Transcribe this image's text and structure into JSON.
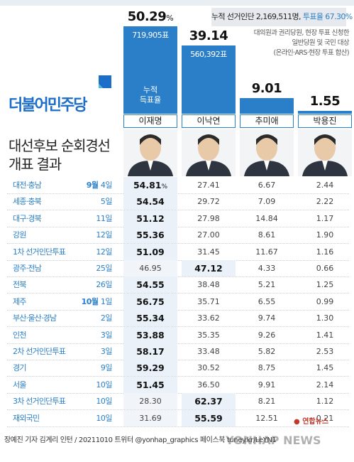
{
  "header": {
    "summary_prefix": "누적 선거인단 2,169,511명, ",
    "summary_turnout": "투표율 67.30%",
    "note_lines": [
      "대의원과 권리당원, 현장 투표 신청한",
      "일반당원 및 국민 대상",
      "(온라인·ARS·현장 투표 합산)"
    ]
  },
  "logo": {
    "party_name": "더불어민주당"
  },
  "title_lines": [
    "대선후보 순회경선",
    "개표 결과"
  ],
  "cumulative_label": [
    "누적",
    "득표율"
  ],
  "chart_data": {
    "type": "bar",
    "categories": [
      "이재명",
      "이낙연",
      "추미애",
      "박용진"
    ],
    "values": [
      50.29,
      39.14,
      9.01,
      1.55
    ],
    "value_labels": [
      "50.29",
      "39.14",
      "9.01",
      "1.55"
    ],
    "unit_first": "%",
    "votes": [
      "719,905표",
      "560,392표",
      "",
      ""
    ],
    "ylim": [
      0,
      55
    ]
  },
  "table": {
    "rows": [
      {
        "region": "대전·충남",
        "month": "9월",
        "day": "4일",
        "values": [
          "54.81",
          "27.41",
          "6.67",
          "2.44"
        ],
        "winner": 0,
        "first_suffix": "%"
      },
      {
        "region": "세종·충북",
        "month": "",
        "day": "5일",
        "values": [
          "54.54",
          "29.72",
          "7.09",
          "2.22"
        ],
        "winner": 0
      },
      {
        "region": "대구·경북",
        "month": "",
        "day": "11일",
        "values": [
          "51.12",
          "27.98",
          "14.84",
          "1.17"
        ],
        "winner": 0
      },
      {
        "region": "강원",
        "month": "",
        "day": "12일",
        "values": [
          "55.36",
          "27.00",
          "8.61",
          "1.90"
        ],
        "winner": 0
      },
      {
        "region": "1차 선거인단투표",
        "month": "",
        "day": "12일",
        "values": [
          "51.09",
          "31.45",
          "11.67",
          "1.16"
        ],
        "winner": 0
      },
      {
        "region": "광주·전남",
        "month": "",
        "day": "25일",
        "values": [
          "46.95",
          "47.12",
          "4.33",
          "0.66"
        ],
        "winner": 1
      },
      {
        "region": "전북",
        "month": "",
        "day": "26일",
        "values": [
          "54.55",
          "38.48",
          "5.21",
          "1.25"
        ],
        "winner": 0
      },
      {
        "region": "제주",
        "month": "10월",
        "day": "1일",
        "values": [
          "56.75",
          "35.71",
          "6.55",
          "0.99"
        ],
        "winner": 0
      },
      {
        "region": "부산·울산·경남",
        "month": "",
        "day": "2일",
        "values": [
          "55.34",
          "33.62",
          "9.74",
          "1.30"
        ],
        "winner": 0
      },
      {
        "region": "인천",
        "month": "",
        "day": "3일",
        "values": [
          "53.88",
          "35.35",
          "9.26",
          "1.41"
        ],
        "winner": 0
      },
      {
        "region": "2차 선거인단투표",
        "month": "",
        "day": "3일",
        "values": [
          "58.17",
          "33.48",
          "5.82",
          "2.53"
        ],
        "winner": 0
      },
      {
        "region": "경기",
        "month": "",
        "day": "9일",
        "values": [
          "59.29",
          "30.52",
          "8.75",
          "1.45"
        ],
        "winner": 0
      },
      {
        "region": "서울",
        "month": "",
        "day": "10일",
        "values": [
          "51.45",
          "36.50",
          "9.91",
          "2.14"
        ],
        "winner": 0
      },
      {
        "region": "3차 선거인단투표",
        "month": "",
        "day": "10일",
        "values": [
          "28.30",
          "62.37",
          "8.21",
          "1.12"
        ],
        "winner": 1
      },
      {
        "region": "재외국민",
        "month": "",
        "day": "10일",
        "values": [
          "31.69",
          "55.59",
          "12.51",
          "0.21"
        ],
        "winner": 1
      }
    ]
  },
  "footer": {
    "credit": "장예진 기자 김계리 인턴 / 20211010  트위터 @yonhap_graphics  페이스북 tuney.kr/LeYN1"
  },
  "brand": {
    "agency": "연합뉴스",
    "watermark": "YONHAP NEWS"
  },
  "colors": {
    "accent": "#2a7fc8",
    "brand": "#1d6ec6"
  }
}
